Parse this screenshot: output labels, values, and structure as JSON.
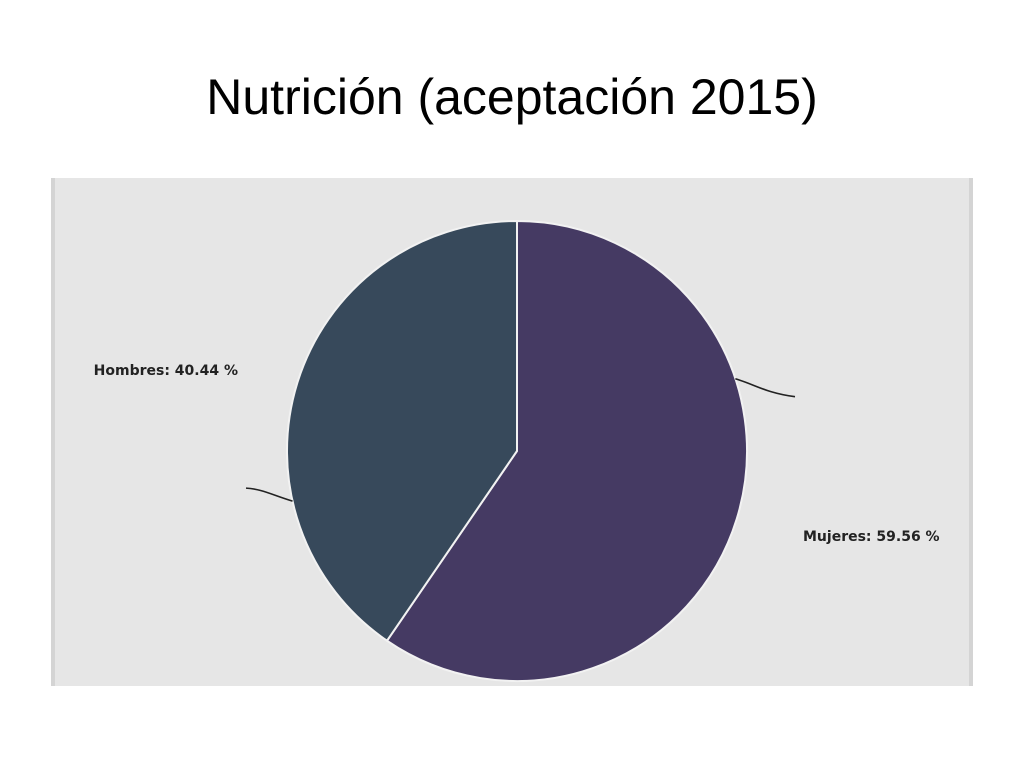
{
  "slide": {
    "title": "Nutrición (aceptación 2015)"
  },
  "chart_data": {
    "type": "pie",
    "title": "",
    "background": "#e6e6e6",
    "slices": [
      {
        "label": "Mujeres",
        "value": 59.56,
        "display": "Mujeres: 59.56 %",
        "color": "#453a63"
      },
      {
        "label": "Hombres",
        "value": 40.44,
        "display": "Hombres: 40.44 %",
        "color": "#37495b"
      }
    ]
  }
}
